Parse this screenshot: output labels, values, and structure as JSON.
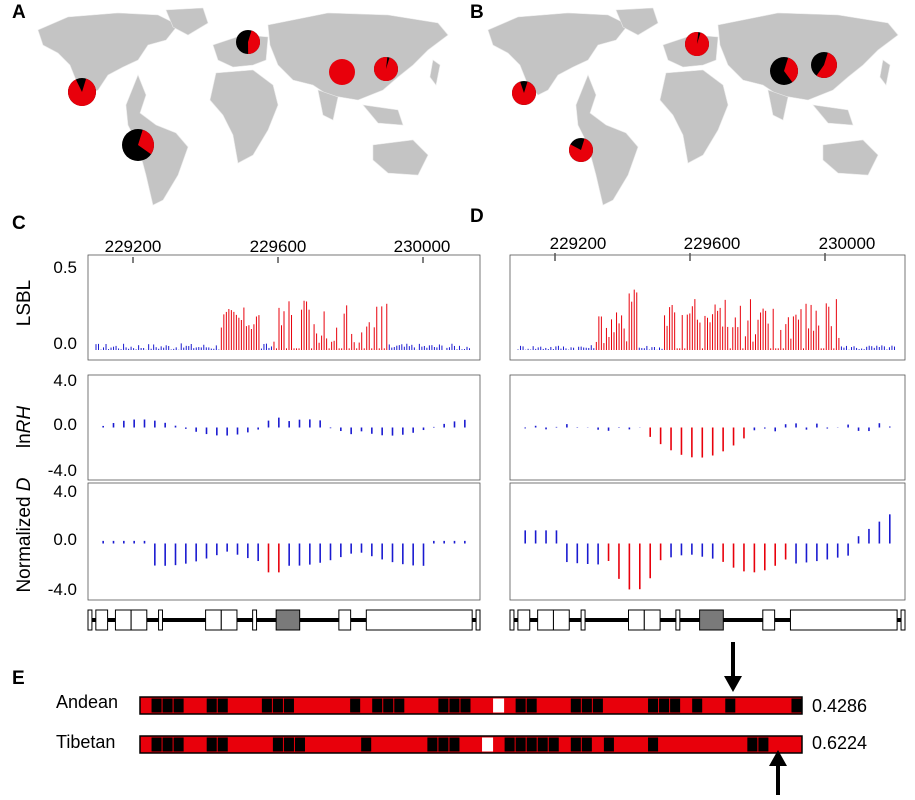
{
  "panels": {
    "A": "A",
    "B": "B",
    "C": "C",
    "D": "D",
    "E": "E"
  },
  "colors": {
    "derived": "#e8000b",
    "ancestral": "#000000",
    "neutral": "#1a1ad0",
    "land": "#c4c4c4",
    "gene_fill": "#7a7a7a"
  },
  "maps": {
    "A": {
      "pies": [
        {
          "region": "Mexico",
          "derived": 0.88
        },
        {
          "region": "South America",
          "derived": 0.3
        },
        {
          "region": "Europe",
          "derived": 0.45
        },
        {
          "region": "South Asia",
          "derived": 1.0
        },
        {
          "region": "East Asia",
          "derived": 0.97
        }
      ]
    },
    "B": {
      "pies": [
        {
          "region": "Mexico",
          "derived": 0.9
        },
        {
          "region": "South America",
          "derived": 0.78
        },
        {
          "region": "Europe",
          "derived": 0.97
        },
        {
          "region": "Tibet",
          "derived": 0.35
        },
        {
          "region": "East Asia",
          "derived": 0.55
        }
      ]
    }
  },
  "tracks": {
    "x_ticks": [
      "229200",
      "229600",
      "230000"
    ],
    "lsbl": {
      "label": "LSBL",
      "ticks": [
        "0.5",
        "0.0"
      ]
    },
    "lnrh": {
      "label_prefix": "ln",
      "label_italic": "RH",
      "ticks": [
        "4.0",
        "0.0",
        "-4.0"
      ]
    },
    "normd": {
      "label_prefix": "Normalized ",
      "label_italic": "D",
      "ticks": [
        "4.0",
        "0.0",
        "-4.0"
      ]
    }
  },
  "chart_data": [
    {
      "type": "bar",
      "panel": "C",
      "track": "LSBL",
      "xlim": [
        228970,
        230190
      ],
      "ylim": [
        0,
        0.5
      ],
      "series": [
        {
          "values_summary": "peak 0.3"
        }
      ]
    },
    {
      "type": "bar",
      "panel": "C",
      "track": "lnRH",
      "ylim": [
        -4,
        4
      ]
    },
    {
      "type": "bar",
      "panel": "C",
      "track": "Normalized D",
      "ylim": [
        -4,
        4
      ]
    },
    {
      "type": "bar",
      "panel": "D",
      "track": "LSBL",
      "ylim": [
        0,
        0.5
      ]
    },
    {
      "type": "bar",
      "panel": "D",
      "track": "lnRH",
      "ylim": [
        -4,
        4
      ]
    },
    {
      "type": "bar",
      "panel": "D",
      "track": "Normalized D",
      "ylim": [
        -4,
        4
      ]
    }
  ],
  "haplotypes": [
    {
      "pop": "Andean",
      "value": "0.4286",
      "pattern": "RKKKRRKKRRRKKKRRRRRKRKKKRRRKKKRRWRKKRRRKKKRRRRKKKRKRRKRRRRRK"
    },
    {
      "pop": "Tibetan",
      "value": "0.6224",
      "pattern": "RKKKRRKKRRRRKKKRRRRRKRRRRRKKKRRWRKKKKKRKKRKRRRKRRRRRRRRKKRRR"
    }
  ]
}
